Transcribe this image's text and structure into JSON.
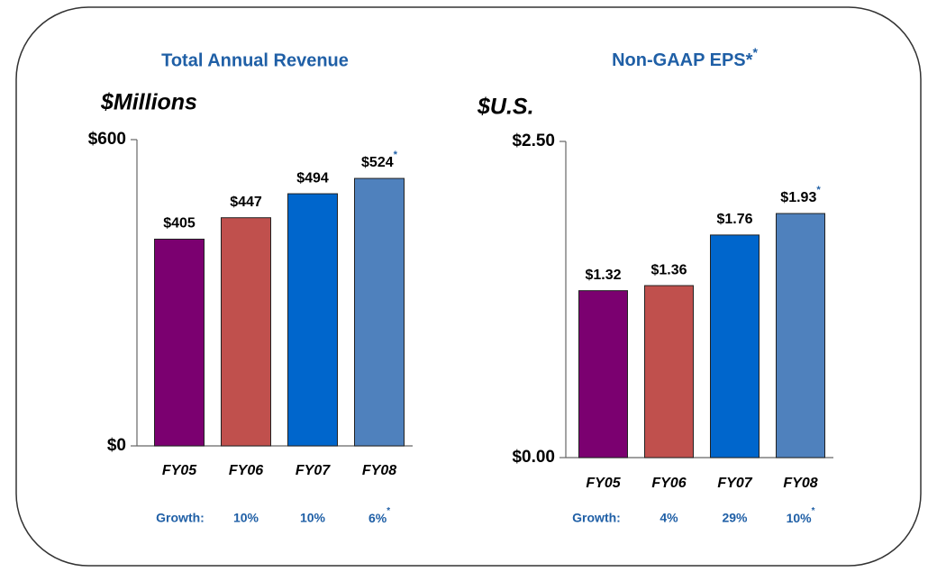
{
  "chart_data": [
    {
      "type": "bar",
      "title": "Total Annual Revenue",
      "y_label": "$Millions",
      "categories": [
        "FY05",
        "FY06",
        "FY07",
        "FY08"
      ],
      "values": [
        405,
        447,
        494,
        524
      ],
      "value_labels": [
        "$405",
        "$447",
        "$494",
        "$524*"
      ],
      "colors": [
        "#7b0070",
        "#c0504d",
        "#0066cc",
        "#4f81bd"
      ],
      "ylim": [
        0,
        600
      ],
      "yticks": [
        {
          "value": 0,
          "label": "$0"
        },
        {
          "value": 600,
          "label": "$600"
        }
      ],
      "growth_label": "Growth:",
      "growth": [
        null,
        "10%",
        "10%",
        "6%*"
      ]
    },
    {
      "type": "bar",
      "title": "Non-GAAP EPS**",
      "y_label": "$U.S.",
      "categories": [
        "FY05",
        "FY06",
        "FY07",
        "FY08"
      ],
      "values": [
        1.32,
        1.36,
        1.76,
        1.93
      ],
      "value_labels": [
        "$1.32",
        "$1.36",
        "$1.76",
        "$1.93*"
      ],
      "colors": [
        "#7b0070",
        "#c0504d",
        "#0066cc",
        "#4f81bd"
      ],
      "ylim": [
        0,
        2.5
      ],
      "yticks": [
        {
          "value": 0,
          "label": "$0.00"
        },
        {
          "value": 2.5,
          "label": "$2.50"
        }
      ],
      "growth_label": "Growth:",
      "growth": [
        null,
        "4%",
        "29%",
        "10%*"
      ]
    }
  ]
}
